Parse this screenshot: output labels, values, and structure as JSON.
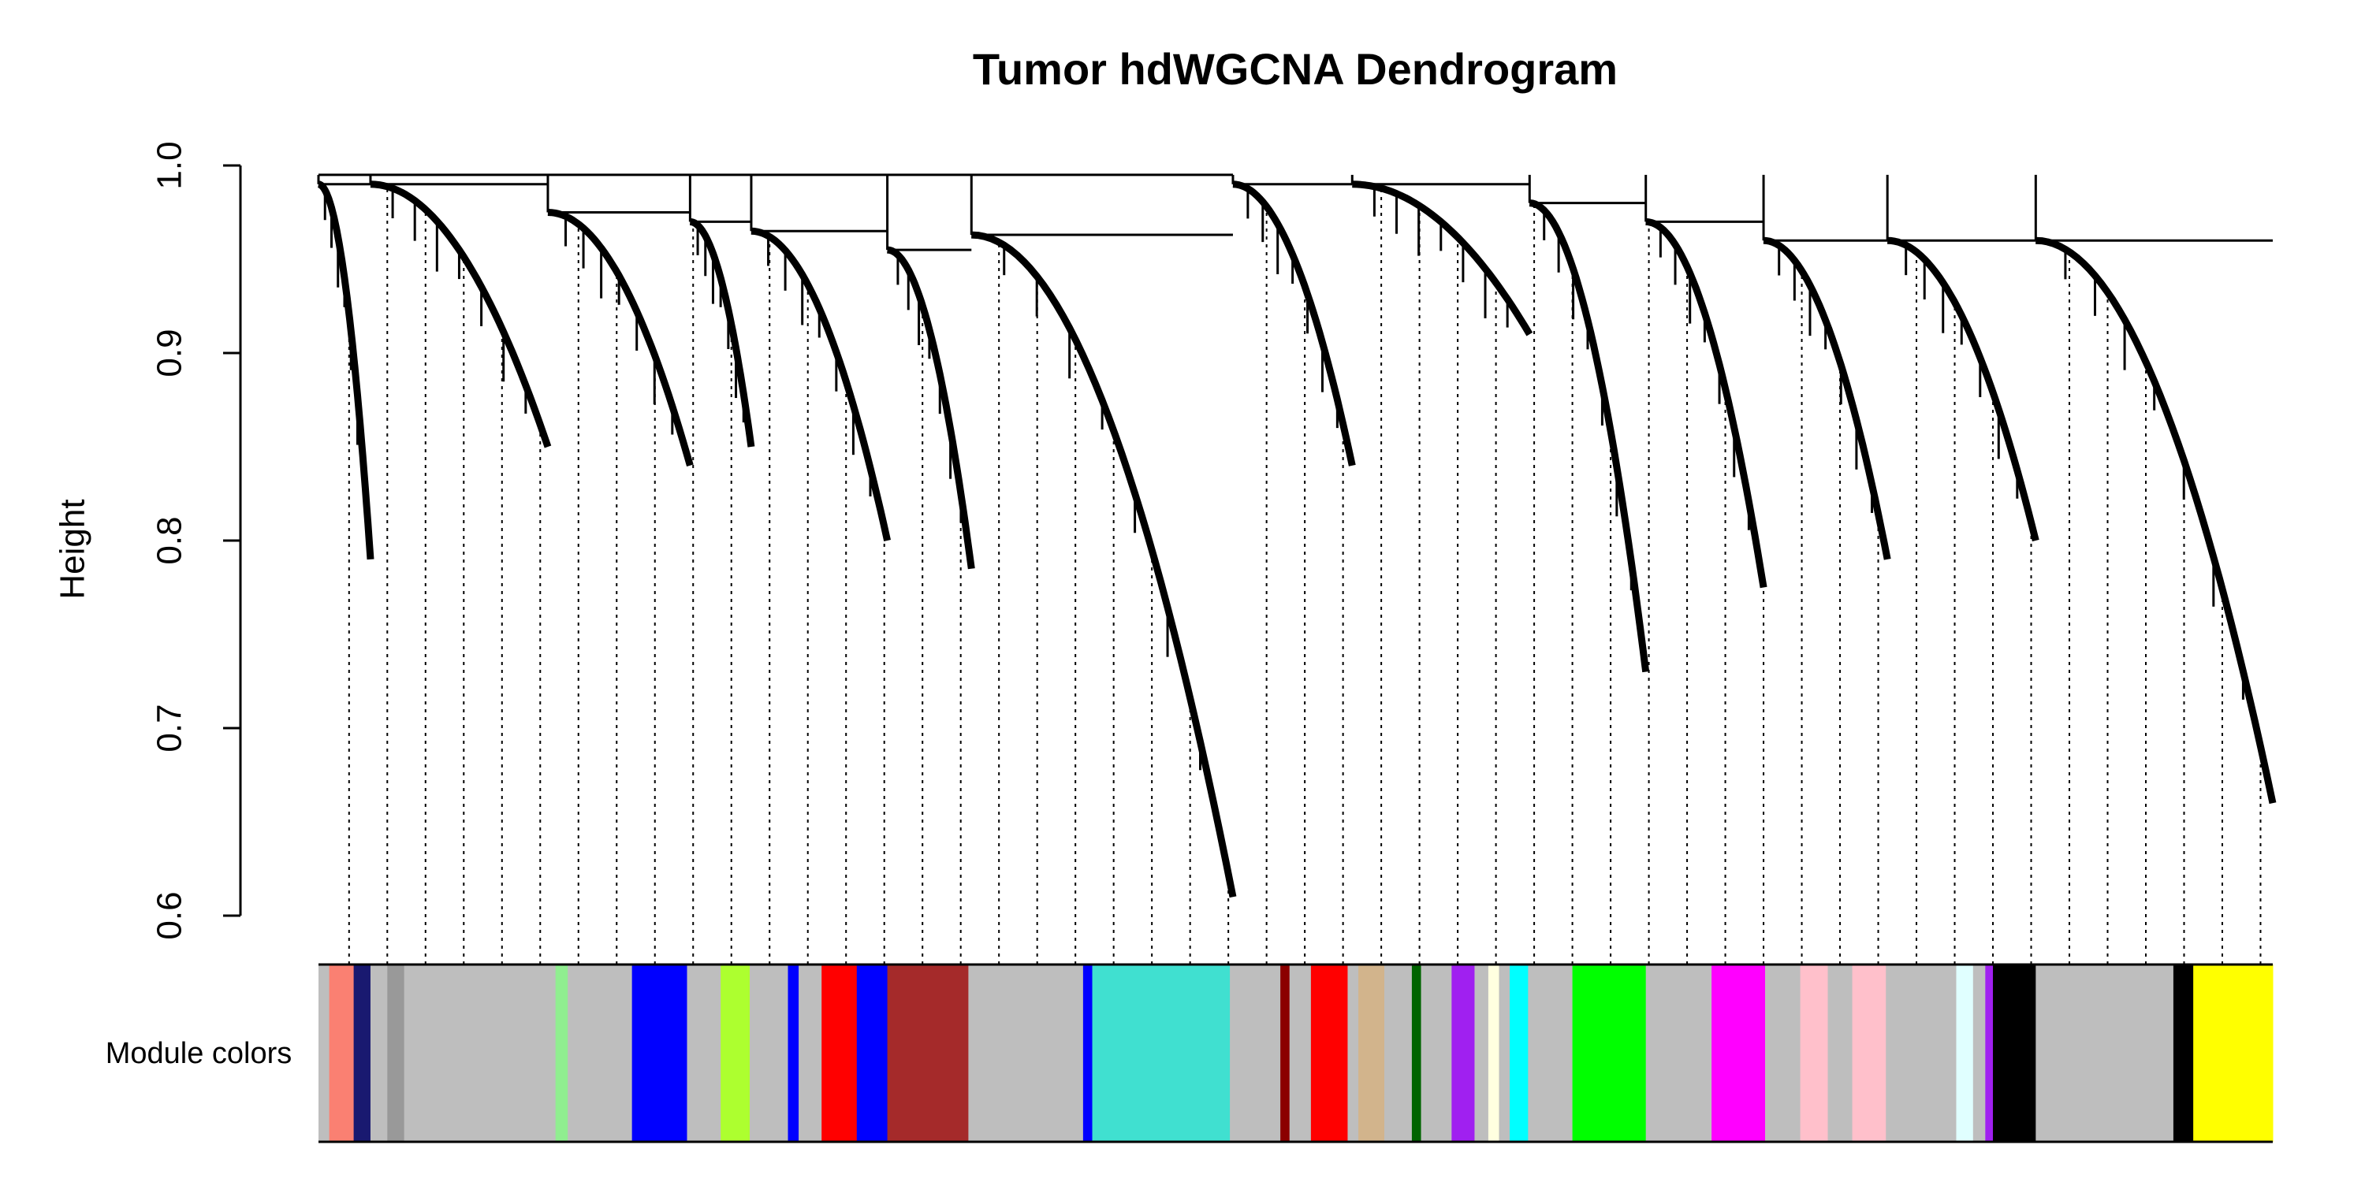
{
  "chart_data": {
    "type": "dendrogram",
    "title": "Tumor hdWGCNA Dendrogram",
    "ylabel": "Height",
    "colors_label": "Module colors",
    "ylim": [
      0.6,
      1.0
    ],
    "yticks": [
      0.6,
      0.7,
      0.8,
      0.9,
      {
        "value": 1,
        "label": "1.0"
      }
    ],
    "root_height": 0.995,
    "clusters": [
      {
        "start": 0,
        "end": 34,
        "top": 0.99,
        "bottom": 0.79
      },
      {
        "start": 34,
        "end": 150,
        "top": 0.99,
        "bottom": 0.85
      },
      {
        "start": 150,
        "end": 243,
        "top": 0.975,
        "bottom": 0.84
      },
      {
        "start": 243,
        "end": 283,
        "top": 0.97,
        "bottom": 0.85
      },
      {
        "start": 283,
        "end": 372,
        "top": 0.965,
        "bottom": 0.8
      },
      {
        "start": 372,
        "end": 427,
        "top": 0.955,
        "bottom": 0.785
      },
      {
        "start": 427,
        "end": 598,
        "top": 0.963,
        "bottom": 0.61
      },
      {
        "start": 598,
        "end": 676,
        "top": 0.99,
        "bottom": 0.84
      },
      {
        "start": 676,
        "end": 792,
        "top": 0.99,
        "bottom": 0.91
      },
      {
        "start": 792,
        "end": 868,
        "top": 0.98,
        "bottom": 0.73
      },
      {
        "start": 868,
        "end": 945,
        "top": 0.97,
        "bottom": 0.775
      },
      {
        "start": 945,
        "end": 1026,
        "top": 0.96,
        "bottom": 0.79
      },
      {
        "start": 1026,
        "end": 1123,
        "top": 0.96,
        "bottom": 0.8
      },
      {
        "start": 1123,
        "end": 1278,
        "top": 0.96,
        "bottom": 0.66
      }
    ],
    "modules": [
      {
        "color": "#bebebe",
        "size": 7
      },
      {
        "color": "#fa8072",
        "size": 16
      },
      {
        "color": "#191970",
        "size": 11
      },
      {
        "color": "#bebebe",
        "size": 11
      },
      {
        "color": "#999999",
        "size": 11
      },
      {
        "color": "#bebebe",
        "size": 99
      },
      {
        "color": "#90ee90",
        "size": 8
      },
      {
        "color": "#bebebe",
        "size": 42
      },
      {
        "color": "#0000ff",
        "size": 36
      },
      {
        "color": "#bebebe",
        "size": 22
      },
      {
        "color": "#adff2f",
        "size": 19
      },
      {
        "color": "#bebebe",
        "size": 25
      },
      {
        "color": "#0000ff",
        "size": 7
      },
      {
        "color": "#bebebe",
        "size": 15
      },
      {
        "color": "#ff0000",
        "size": 23
      },
      {
        "color": "#0000ff",
        "size": 20
      },
      {
        "color": "#a52a2a",
        "size": 53
      },
      {
        "color": "#bebebe",
        "size": 75
      },
      {
        "color": "#0000ff",
        "size": 6
      },
      {
        "color": "#40e0d0",
        "size": 90
      },
      {
        "color": "#bebebe",
        "size": 33
      },
      {
        "color": "#8b0000",
        "size": 6
      },
      {
        "color": "#bebebe",
        "size": 14
      },
      {
        "color": "#ff0000",
        "size": 24
      },
      {
        "color": "#bebebe",
        "size": 7
      },
      {
        "color": "#d2b48c",
        "size": 17
      },
      {
        "color": "#bebebe",
        "size": 18
      },
      {
        "color": "#006400",
        "size": 6
      },
      {
        "color": "#bebebe",
        "size": 20
      },
      {
        "color": "#a020f0",
        "size": 15
      },
      {
        "color": "#bebebe",
        "size": 9
      },
      {
        "color": "#ffffe0",
        "size": 7
      },
      {
        "color": "#bebebe",
        "size": 7
      },
      {
        "color": "#00ffff",
        "size": 12
      },
      {
        "color": "#bebebe",
        "size": 29
      },
      {
        "color": "#00ff00",
        "size": 48
      },
      {
        "color": "#bebebe",
        "size": 43
      },
      {
        "color": "#ff00ff",
        "size": 35
      },
      {
        "color": "#bebebe",
        "size": 23
      },
      {
        "color": "#ffc0cb",
        "size": 18
      },
      {
        "color": "#bebebe",
        "size": 16
      },
      {
        "color": "#ffc0cb",
        "size": 22
      },
      {
        "color": "#bebebe",
        "size": 46
      },
      {
        "color": "#e0ffff",
        "size": 11
      },
      {
        "color": "#bebebe",
        "size": 8
      },
      {
        "color": "#a020f0",
        "size": 5
      },
      {
        "color": "#000000",
        "size": 28
      },
      {
        "color": "#bebebe",
        "size": 90
      },
      {
        "color": "#000000",
        "size": 13
      },
      {
        "color": "#ffff00",
        "size": 52
      }
    ]
  }
}
